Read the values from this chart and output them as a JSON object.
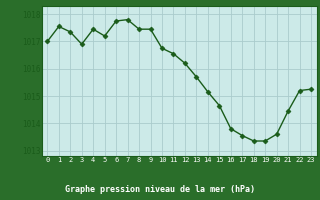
{
  "x": [
    0,
    1,
    2,
    3,
    4,
    5,
    6,
    7,
    8,
    9,
    10,
    11,
    12,
    13,
    14,
    15,
    16,
    17,
    18,
    19,
    20,
    21,
    22,
    23
  ],
  "y": [
    1017.0,
    1017.55,
    1017.35,
    1016.9,
    1017.45,
    1017.2,
    1017.75,
    1017.8,
    1017.45,
    1017.45,
    1016.75,
    1016.55,
    1016.2,
    1015.7,
    1015.15,
    1014.65,
    1013.8,
    1013.55,
    1013.35,
    1013.35,
    1013.6,
    1014.45,
    1015.2,
    1015.25
  ],
  "line_color": "#1a5c1a",
  "marker": "D",
  "marker_size": 2.5,
  "bg_color": "#cceae8",
  "grid_color": "#aacccc",
  "xlabel": "Graphe pression niveau de la mer (hPa)",
  "xlabel_color": "#ffffff",
  "tick_label_color_x": "#ffffff",
  "tick_label_color_y": "#1a5c1a",
  "bottom_bar_color": "#2a6e2a",
  "ylim": [
    1012.8,
    1018.3
  ],
  "yticks": [
    1013,
    1014,
    1015,
    1016,
    1017,
    1018
  ],
  "xticks": [
    0,
    1,
    2,
    3,
    4,
    5,
    6,
    7,
    8,
    9,
    10,
    11,
    12,
    13,
    14,
    15,
    16,
    17,
    18,
    19,
    20,
    21,
    22,
    23
  ],
  "border_color": "#1a5c1a"
}
